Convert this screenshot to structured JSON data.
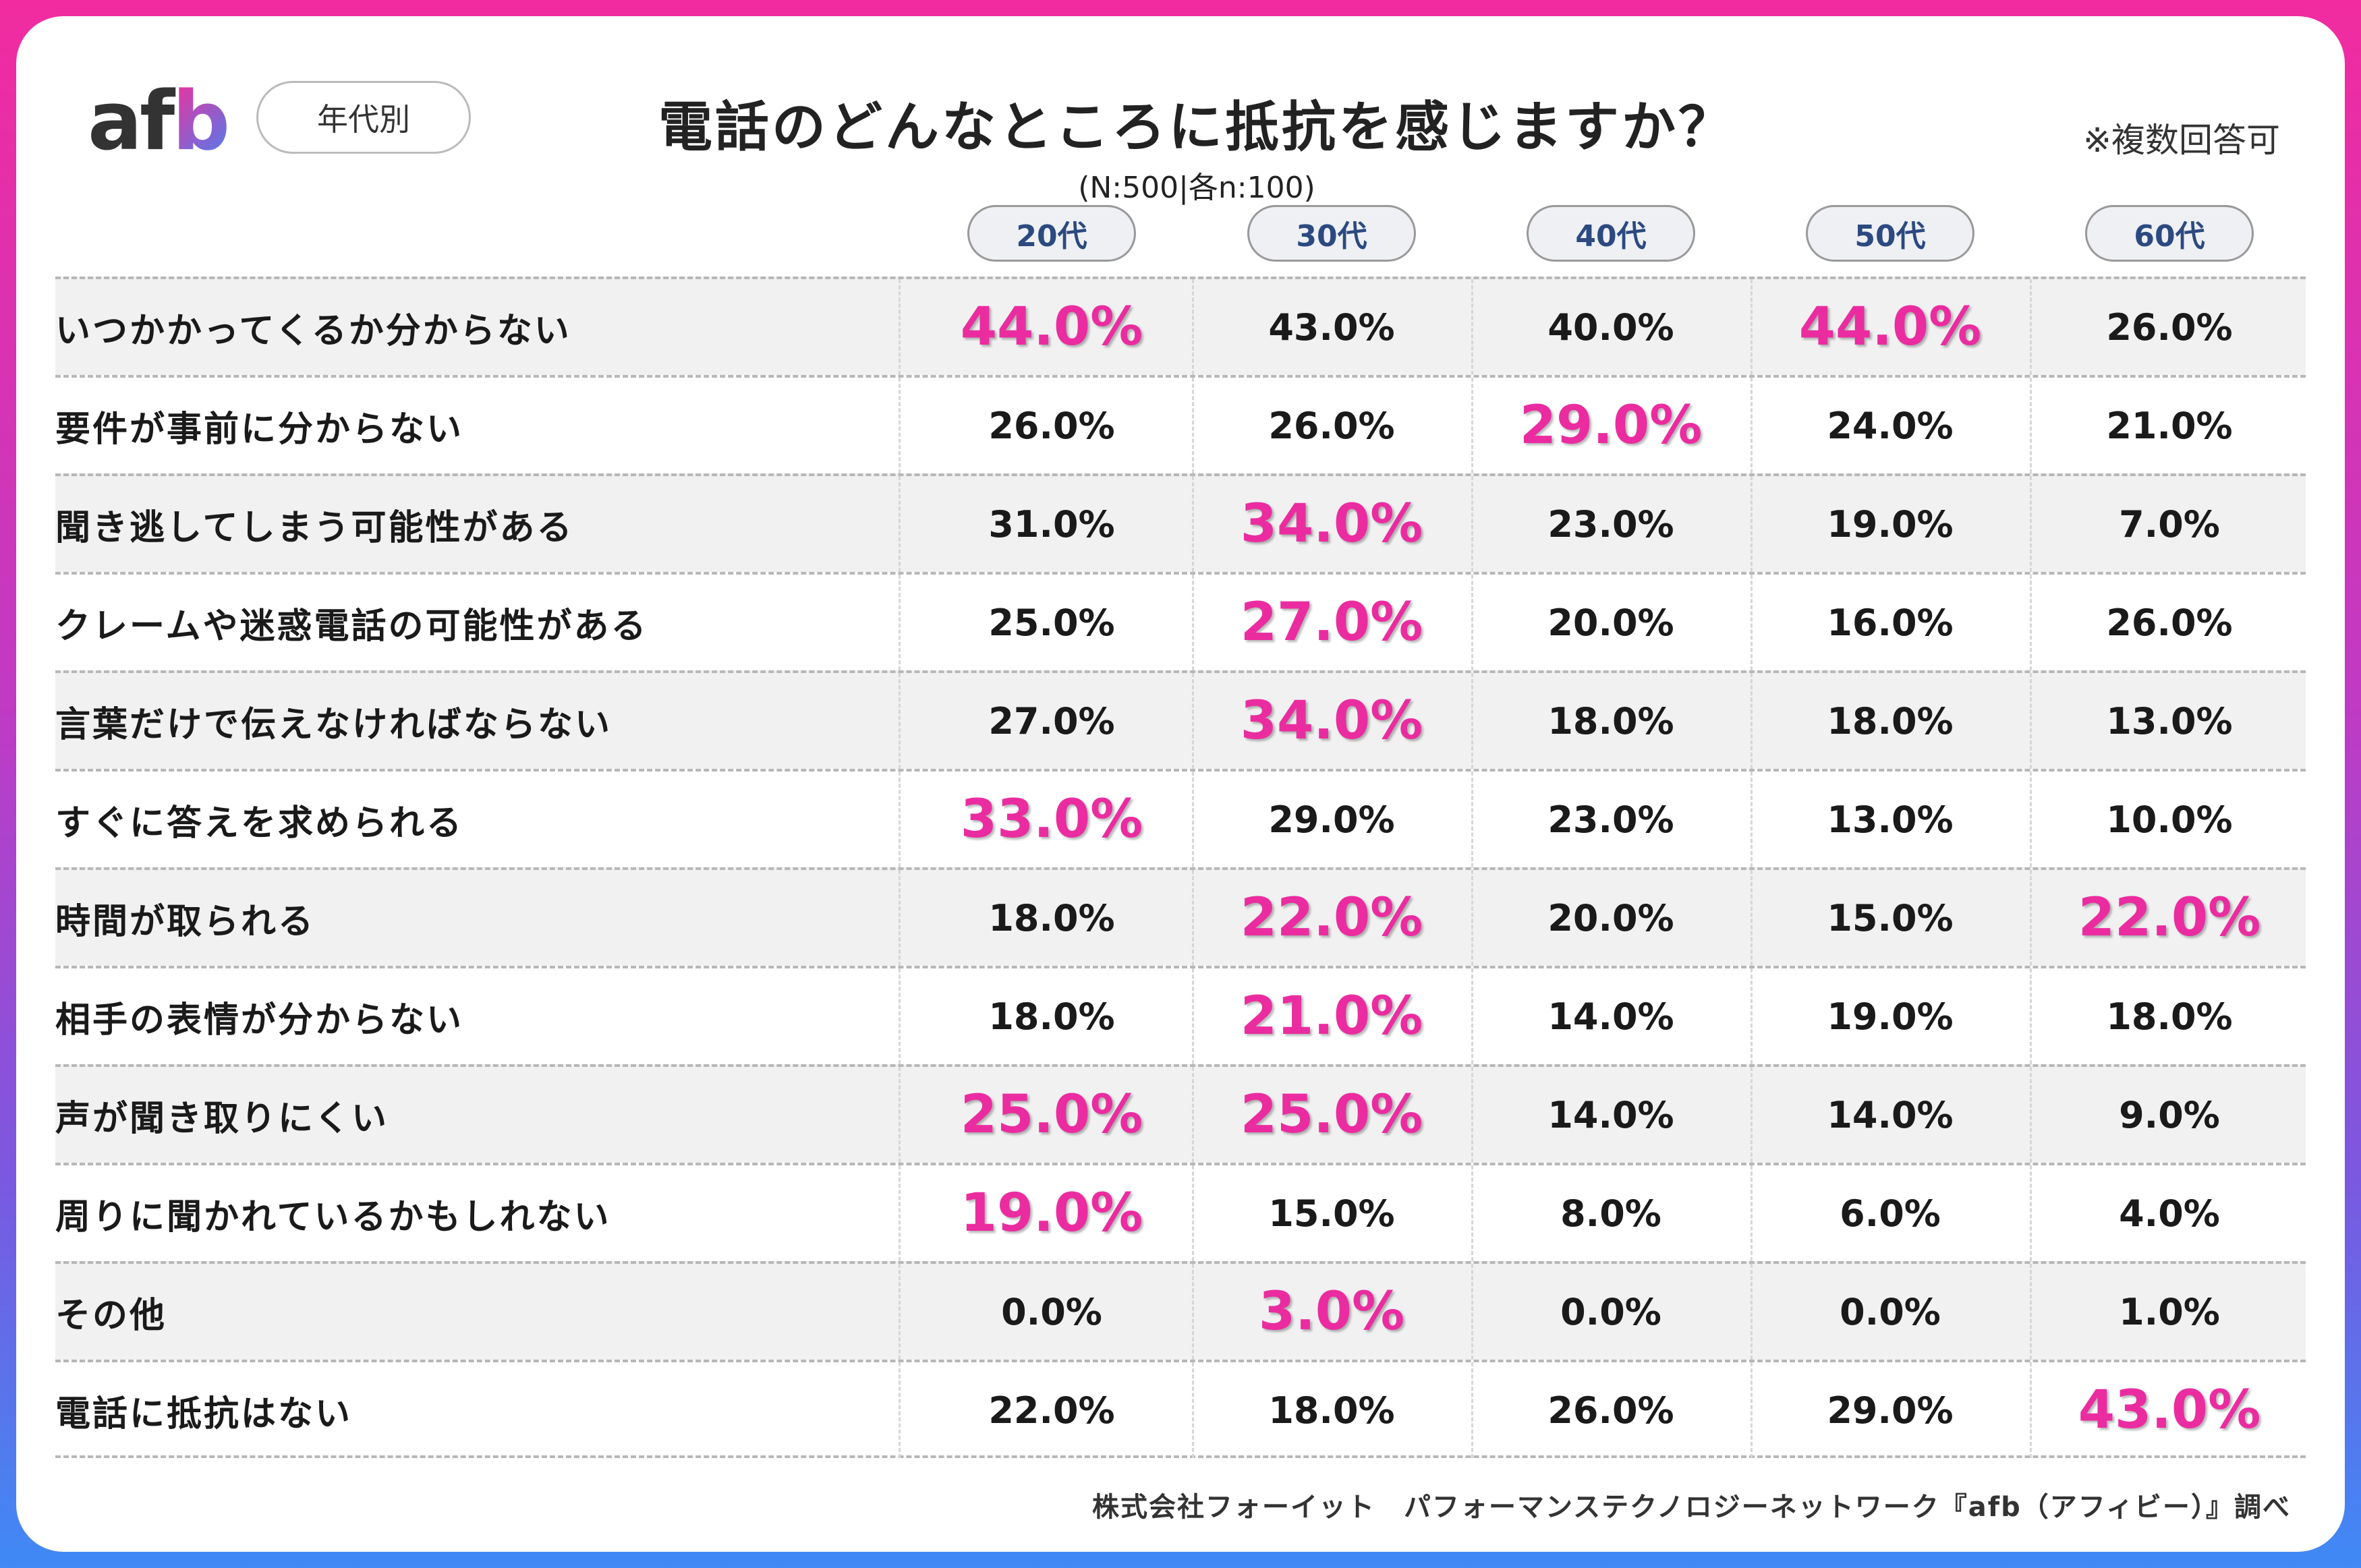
{
  "logo": {
    "text_a": "af",
    "text_b": "b"
  },
  "segment_pill": "年代別",
  "title": "電話のどんなところに抵抗を感じますか？",
  "sample": "(N:500|各n:100)",
  "note": "※複数回答可",
  "footer": "株式会社フォーイット　パフォーマンステクノロジーネットワーク『afb（アフィビー）』調べ",
  "colors": {
    "highlight": "#ea2ca0",
    "row_shade": "#f1f1f1",
    "frame_top": "#f22ba0",
    "frame_bottom": "#3f8af5"
  },
  "chart_data": {
    "type": "table",
    "title": "電話のどんなところに抵抗を感じますか？",
    "columns": [
      "20代",
      "30代",
      "40代",
      "50代",
      "60代"
    ],
    "rows": [
      {
        "label": "いつかかってくるか分からない",
        "values": [
          "44.0%",
          "43.0%",
          "40.0%",
          "44.0%",
          "26.0%"
        ],
        "highlight": [
          true,
          false,
          false,
          true,
          false
        ]
      },
      {
        "label": "要件が事前に分からない",
        "values": [
          "26.0%",
          "26.0%",
          "29.0%",
          "24.0%",
          "21.0%"
        ],
        "highlight": [
          false,
          false,
          true,
          false,
          false
        ]
      },
      {
        "label": "聞き逃してしまう可能性がある",
        "values": [
          "31.0%",
          "34.0%",
          "23.0%",
          "19.0%",
          "7.0%"
        ],
        "highlight": [
          false,
          true,
          false,
          false,
          false
        ]
      },
      {
        "label": "クレームや迷惑電話の可能性がある",
        "values": [
          "25.0%",
          "27.0%",
          "20.0%",
          "16.0%",
          "26.0%"
        ],
        "highlight": [
          false,
          true,
          false,
          false,
          false
        ]
      },
      {
        "label": "言葉だけで伝えなければならない",
        "values": [
          "27.0%",
          "34.0%",
          "18.0%",
          "18.0%",
          "13.0%"
        ],
        "highlight": [
          false,
          true,
          false,
          false,
          false
        ]
      },
      {
        "label": "すぐに答えを求められる",
        "values": [
          "33.0%",
          "29.0%",
          "23.0%",
          "13.0%",
          "10.0%"
        ],
        "highlight": [
          true,
          false,
          false,
          false,
          false
        ]
      },
      {
        "label": "時間が取られる",
        "values": [
          "18.0%",
          "22.0%",
          "20.0%",
          "15.0%",
          "22.0%"
        ],
        "highlight": [
          false,
          true,
          false,
          false,
          true
        ]
      },
      {
        "label": "相手の表情が分からない",
        "values": [
          "18.0%",
          "21.0%",
          "14.0%",
          "19.0%",
          "18.0%"
        ],
        "highlight": [
          false,
          true,
          false,
          false,
          false
        ]
      },
      {
        "label": "声が聞き取りにくい",
        "values": [
          "25.0%",
          "25.0%",
          "14.0%",
          "14.0%",
          "9.0%"
        ],
        "highlight": [
          true,
          true,
          false,
          false,
          false
        ]
      },
      {
        "label": "周りに聞かれているかもしれない",
        "values": [
          "19.0%",
          "15.0%",
          "8.0%",
          "6.0%",
          "4.0%"
        ],
        "highlight": [
          true,
          false,
          false,
          false,
          false
        ]
      },
      {
        "label": "その他",
        "values": [
          "0.0%",
          "3.0%",
          "0.0%",
          "0.0%",
          "1.0%"
        ],
        "highlight": [
          false,
          true,
          false,
          false,
          false
        ]
      },
      {
        "label": "電話に抵抗はない",
        "values": [
          "22.0%",
          "18.0%",
          "26.0%",
          "29.0%",
          "43.0%"
        ],
        "highlight": [
          false,
          false,
          false,
          false,
          true
        ]
      }
    ]
  }
}
